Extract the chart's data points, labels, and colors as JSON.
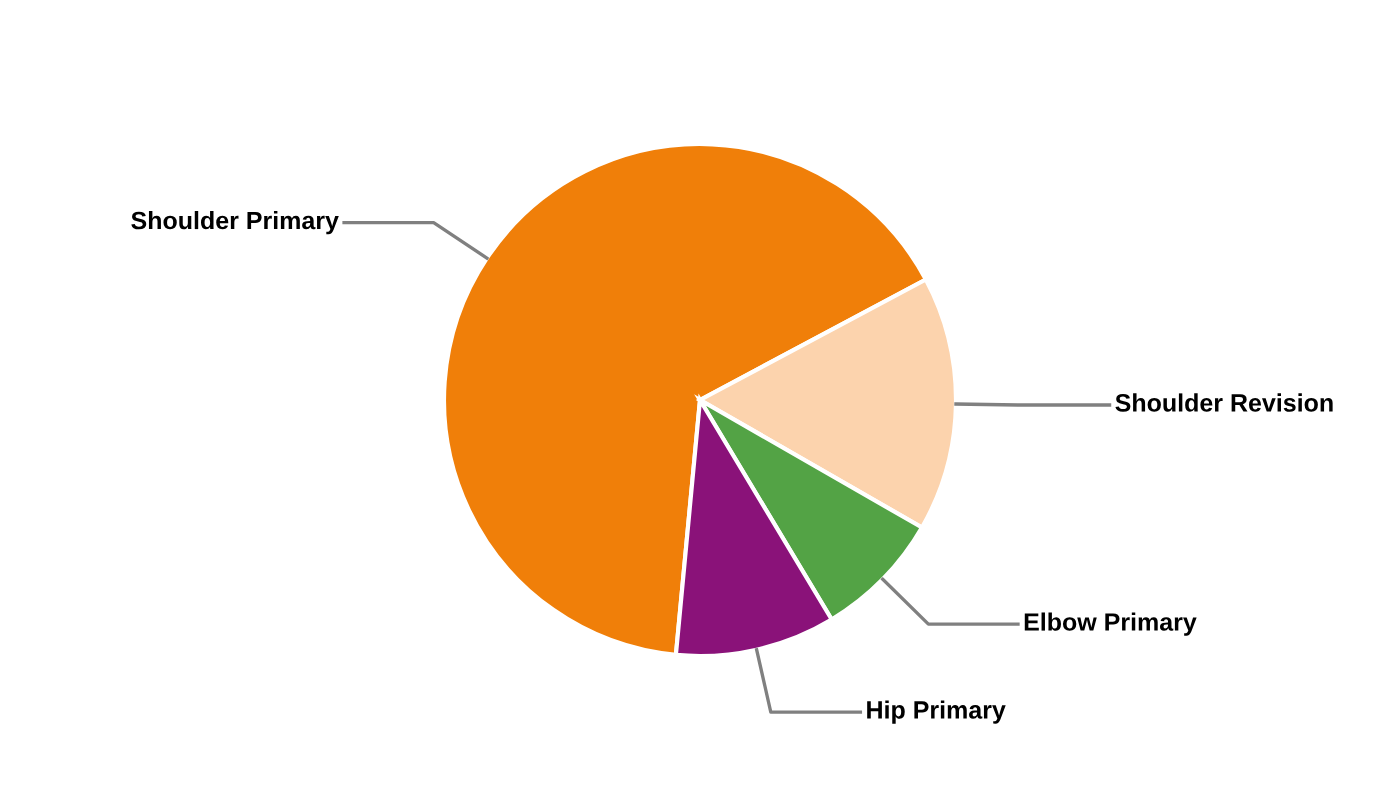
{
  "chart_data": {
    "type": "pie",
    "categories": [
      "Shoulder Primary",
      "Shoulder Revision",
      "Elbow Primary",
      "Hip Primary"
    ],
    "values": [
      65.7,
      16.1,
      8.1,
      10.1
    ],
    "colors": [
      "#f07f09",
      "#fcd3ad",
      "#53a345",
      "#8a1279"
    ],
    "legend": false
  }
}
